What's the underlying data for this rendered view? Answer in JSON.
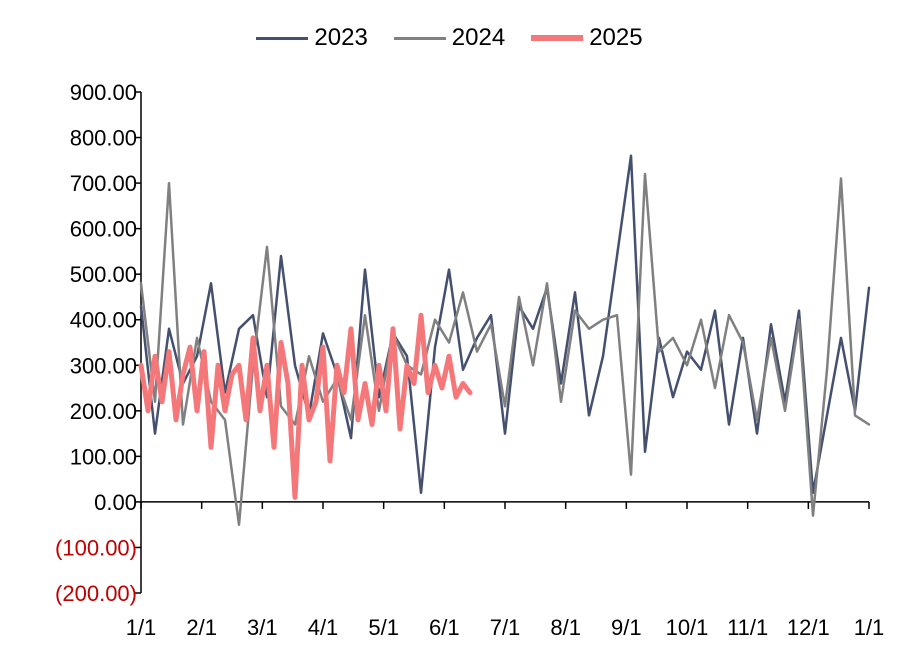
{
  "legend": {
    "items": [
      {
        "label": "2023",
        "color": "#44506e"
      },
      {
        "label": "2024",
        "color": "#808080"
      },
      {
        "label": "2025",
        "color": "#f4787a"
      }
    ]
  },
  "chart_data": {
    "type": "line",
    "title": "",
    "xlabel": "",
    "ylabel": "",
    "ylim": [
      -200,
      900
    ],
    "y_ticks": [
      {
        "value": 900,
        "label": "900.00"
      },
      {
        "value": 800,
        "label": "800.00"
      },
      {
        "value": 700,
        "label": "700.00"
      },
      {
        "value": 600,
        "label": "600.00"
      },
      {
        "value": 500,
        "label": "500.00"
      },
      {
        "value": 400,
        "label": "400.00"
      },
      {
        "value": 300,
        "label": "300.00"
      },
      {
        "value": 200,
        "label": "200.00"
      },
      {
        "value": 100,
        "label": "100.00"
      },
      {
        "value": 0,
        "label": "0.00"
      },
      {
        "value": -100,
        "label": "(100.00)"
      },
      {
        "value": -200,
        "label": "(200.00)"
      }
    ],
    "negative_label_color": "#c00000",
    "x_ticks": [
      "1/1",
      "2/1",
      "3/1",
      "4/1",
      "5/1",
      "6/1",
      "7/1",
      "8/1",
      "9/1",
      "10/1",
      "11/1",
      "12/1",
      "1/1"
    ],
    "x_unit": "week of year (1/1 to 1/1, 52 weeks)",
    "legend_position": "top-center",
    "grid": false,
    "series": [
      {
        "name": "2023",
        "color": "#44506e",
        "x": [
          0,
          1,
          2,
          3,
          4,
          5,
          6,
          7,
          8,
          9,
          10,
          11,
          12,
          13,
          14,
          15,
          16,
          17,
          18,
          19,
          20,
          21,
          22,
          23,
          24,
          25,
          26,
          27,
          28,
          29,
          30,
          31,
          32,
          33,
          34,
          35,
          36,
          37,
          38,
          39,
          40,
          41,
          42,
          43,
          44,
          45,
          46,
          47,
          48,
          49,
          50,
          51,
          52
        ],
        "values": [
          430,
          150,
          380,
          260,
          320,
          480,
          240,
          380,
          410,
          230,
          540,
          300,
          190,
          370,
          280,
          140,
          510,
          230,
          370,
          320,
          20,
          340,
          510,
          290,
          360,
          410,
          150,
          430,
          380,
          470,
          260,
          460,
          190,
          320,
          540,
          760,
          110,
          360,
          230,
          330,
          290,
          420,
          170,
          360,
          150,
          390,
          220,
          420,
          20,
          190,
          360,
          200,
          470
        ]
      },
      {
        "name": "2024",
        "color": "#808080",
        "x": [
          0,
          1,
          2,
          3,
          4,
          5,
          6,
          7,
          8,
          9,
          10,
          11,
          12,
          13,
          14,
          15,
          16,
          17,
          18,
          19,
          20,
          21,
          22,
          23,
          24,
          25,
          26,
          27,
          28,
          29,
          30,
          31,
          32,
          33,
          34,
          35,
          36,
          37,
          38,
          39,
          40,
          41,
          42,
          43,
          44,
          45,
          46,
          47,
          48,
          49,
          50,
          51,
          52
        ],
        "values": [
          480,
          220,
          700,
          170,
          360,
          220,
          180,
          -50,
          300,
          560,
          210,
          170,
          320,
          220,
          270,
          180,
          410,
          200,
          370,
          300,
          280,
          400,
          350,
          460,
          330,
          390,
          210,
          450,
          300,
          480,
          220,
          420,
          380,
          400,
          410,
          60,
          720,
          330,
          360,
          300,
          400,
          250,
          410,
          350,
          180,
          360,
          200,
          400,
          -30,
          290,
          710,
          190,
          170
        ]
      },
      {
        "name": "2025",
        "color": "#f4787a",
        "x": [
          0,
          0.5,
          1,
          1.5,
          2,
          2.5,
          3,
          3.5,
          4,
          4.5,
          5,
          5.5,
          6,
          6.5,
          7,
          7.5,
          8,
          8.5,
          9,
          9.5,
          10,
          10.5,
          11,
          11.5,
          12,
          12.5,
          13,
          13.5,
          14,
          14.5,
          15,
          15.5,
          16,
          16.5,
          17,
          17.5,
          18,
          18.5,
          19,
          19.5,
          20,
          20.5,
          21,
          21.5,
          22,
          22.5,
          23,
          23.5
        ],
        "values": [
          300,
          200,
          320,
          220,
          330,
          180,
          280,
          340,
          200,
          330,
          120,
          300,
          200,
          280,
          300,
          180,
          360,
          200,
          300,
          120,
          350,
          260,
          10,
          300,
          180,
          220,
          340,
          90,
          300,
          240,
          380,
          180,
          260,
          170,
          300,
          200,
          380,
          160,
          300,
          260,
          410,
          240,
          300,
          250,
          320,
          230,
          260,
          240
        ]
      }
    ]
  }
}
